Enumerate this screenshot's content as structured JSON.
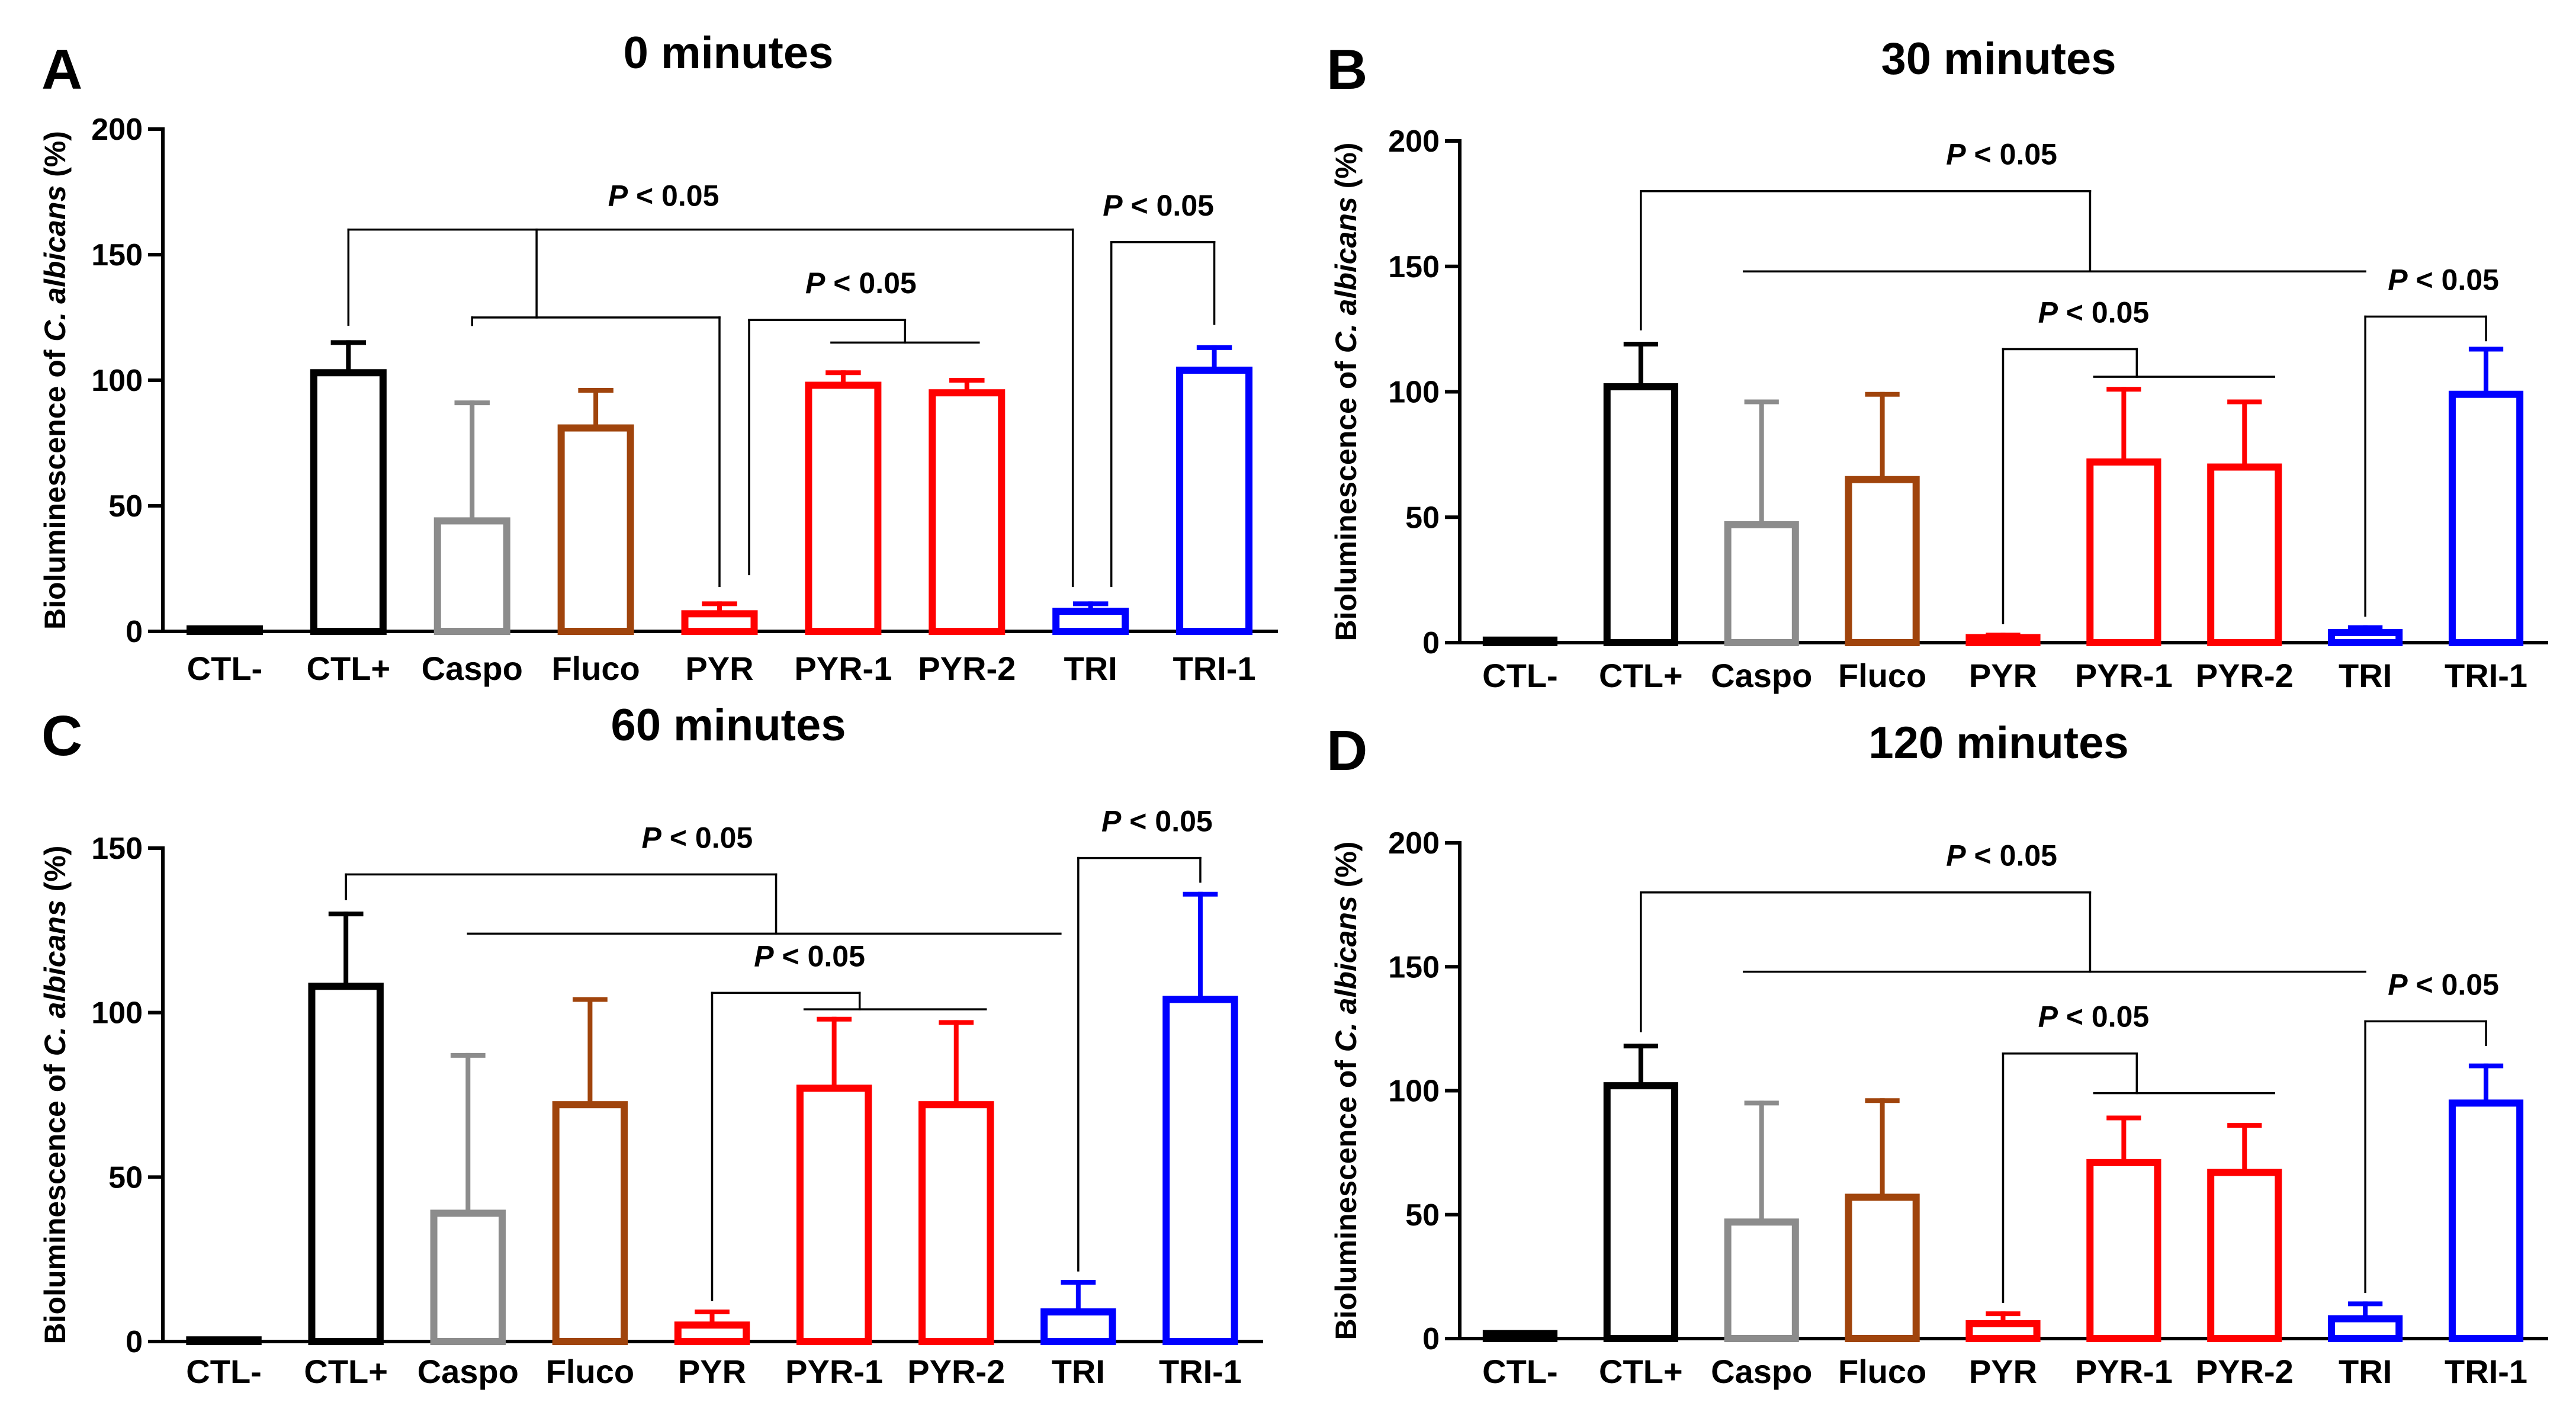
{
  "chart_data": [
    {
      "panel": "A",
      "type": "bar",
      "title": "0 minutes",
      "xlabel": "",
      "ylabel_prefix": "Bioluminescence of ",
      "ylabel_italic": "C. albicans",
      "ylabel_suffix": " (%)",
      "ylim": [
        0,
        200
      ],
      "yticks": [
        0,
        50,
        100,
        150,
        200
      ],
      "categories": [
        "CTL-",
        "CTL+",
        "Caspo",
        "Fluco",
        "PYR",
        "PYR-1",
        "PYR-2",
        "TRI",
        "TRI-1"
      ],
      "values": [
        1,
        103,
        44,
        81,
        7,
        98,
        95,
        8,
        104
      ],
      "errors": [
        0,
        12,
        47,
        15,
        4,
        5,
        5,
        3,
        9
      ],
      "colors": [
        "#000000",
        "#000000",
        "#8c8c8c",
        "#a0440c",
        "#ff0000",
        "#ff0000",
        "#ff0000",
        "#0000ff",
        "#0000ff"
      ],
      "annotations": [
        {
          "text": "P < 0.05",
          "italic_part": "P",
          "rest": " < 0.05"
        },
        {
          "text": "P < 0.05",
          "italic_part": "P",
          "rest": " < 0.05"
        },
        {
          "text": "P < 0.05",
          "italic_part": "P",
          "rest": " < 0.05"
        }
      ]
    },
    {
      "panel": "B",
      "type": "bar",
      "title": "30 minutes",
      "xlabel": "",
      "ylabel_prefix": "Bioluminescence of ",
      "ylabel_italic": "C. albicans",
      "ylabel_suffix": " (%)",
      "ylim": [
        0,
        200
      ],
      "yticks": [
        0,
        50,
        100,
        150,
        200
      ],
      "categories": [
        "CTL-",
        "CTL+",
        "Caspo",
        "Fluco",
        "PYR",
        "PYR-1",
        "PYR-2",
        "TRI",
        "TRI-1"
      ],
      "values": [
        1,
        102,
        47,
        65,
        2,
        72,
        70,
        4,
        99
      ],
      "errors": [
        0,
        17,
        49,
        34,
        1,
        29,
        26,
        2,
        18
      ],
      "colors": [
        "#000000",
        "#000000",
        "#8c8c8c",
        "#a0440c",
        "#ff0000",
        "#ff0000",
        "#ff0000",
        "#0000ff",
        "#0000ff"
      ],
      "annotations": [
        {
          "text": "P < 0.05",
          "italic_part": "P",
          "rest": " < 0.05"
        },
        {
          "text": "P < 0.05",
          "italic_part": "P",
          "rest": " < 0.05"
        },
        {
          "text": "P < 0.05",
          "italic_part": "P",
          "rest": " < 0.05"
        }
      ]
    },
    {
      "panel": "C",
      "type": "bar",
      "title": "60 minutes",
      "xlabel": "",
      "ylabel_prefix": "Bioluminescence of ",
      "ylabel_italic": "C. albicans",
      "ylabel_suffix": " (%)",
      "ylim": [
        0,
        150
      ],
      "yticks": [
        0,
        50,
        100,
        150
      ],
      "categories": [
        "CTL-",
        "CTL+",
        "Caspo",
        "Fluco",
        "PYR",
        "PYR-1",
        "PYR-2",
        "TRI",
        "TRI-1"
      ],
      "values": [
        0.5,
        108,
        39,
        72,
        5,
        77,
        72,
        9,
        104
      ],
      "errors": [
        0,
        22,
        48,
        32,
        4,
        21,
        25,
        9,
        32
      ],
      "colors": [
        "#000000",
        "#000000",
        "#8c8c8c",
        "#a0440c",
        "#ff0000",
        "#ff0000",
        "#ff0000",
        "#0000ff",
        "#0000ff"
      ],
      "annotations": [
        {
          "text": "P < 0.05",
          "italic_part": "P",
          "rest": " < 0.05"
        },
        {
          "text": "P < 0.05",
          "italic_part": "P",
          "rest": " < 0.05"
        },
        {
          "text": "P < 0.05",
          "italic_part": "P",
          "rest": " < 0.05"
        }
      ]
    },
    {
      "panel": "D",
      "type": "bar",
      "title": "120 minutes",
      "xlabel": "",
      "ylabel_prefix": "Bioluminescence of ",
      "ylabel_italic": "C. albicans",
      "ylabel_suffix": " (%)",
      "ylim": [
        0,
        200
      ],
      "yticks": [
        0,
        50,
        100,
        150,
        200
      ],
      "categories": [
        "CTL-",
        "CTL+",
        "Caspo",
        "Fluco",
        "PYR",
        "PYR-1",
        "PYR-2",
        "TRI",
        "TRI-1"
      ],
      "values": [
        2,
        102,
        47,
        57,
        6,
        71,
        67,
        8,
        95
      ],
      "errors": [
        0,
        16,
        48,
        39,
        4,
        18,
        19,
        6,
        15
      ],
      "colors": [
        "#000000",
        "#000000",
        "#8c8c8c",
        "#a0440c",
        "#ff0000",
        "#ff0000",
        "#ff0000",
        "#0000ff",
        "#0000ff"
      ],
      "annotations": [
        {
          "text": "P < 0.05",
          "italic_part": "P",
          "rest": " < 0.05"
        },
        {
          "text": "P < 0.05",
          "italic_part": "P",
          "rest": " < 0.05"
        },
        {
          "text": "P < 0.05",
          "italic_part": "P",
          "rest": " < 0.05"
        }
      ]
    }
  ]
}
